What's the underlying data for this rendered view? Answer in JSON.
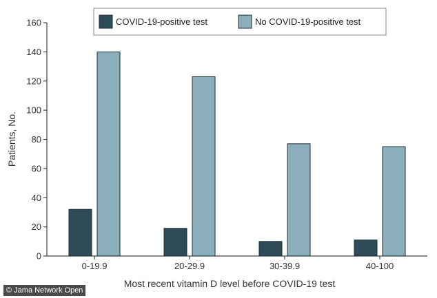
{
  "chart_data": {
    "type": "bar",
    "categories": [
      "0-19.9",
      "20-29.9",
      "30-39.9",
      "40-100"
    ],
    "series": [
      {
        "name": "COVID-19-positive test",
        "values": [
          32,
          19,
          10,
          11
        ],
        "color": "#2e4b57"
      },
      {
        "name": "No COVID-19-positive test",
        "values": [
          140,
          123,
          77,
          75
        ],
        "color": "#8aaeba"
      }
    ],
    "xlabel": "Most recent vitamin D level before COVID-19 test",
    "ylabel": "Patients, No.",
    "ylim": [
      0,
      160
    ],
    "yticks": [
      "0",
      "20",
      "40",
      "60",
      "80",
      "100",
      "120",
      "140",
      "160"
    ],
    "legend_position": "top",
    "grid": false
  },
  "credit": "© Jama Network Open"
}
